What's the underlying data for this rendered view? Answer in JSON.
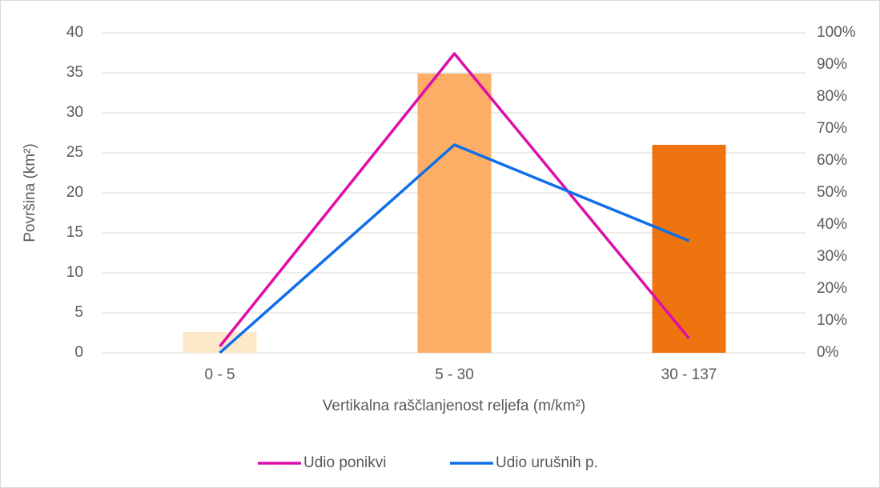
{
  "chart_data": {
    "type": "bar",
    "axis_label_y": "Površina (km²)",
    "axis_label_x": "Vertikalna raščlanjenost reljefa (m/km²)",
    "categories": [
      "0 - 5",
      "5 - 30",
      "30 - 137"
    ],
    "values": [
      2.6,
      34.9,
      26.0
    ],
    "colors": [
      "#fde8c8",
      "#fcae66",
      "#ee7410"
    ],
    "series": [
      {
        "name": "Udio ponikvi",
        "color": "#dd0fa8",
        "values": [
          2,
          93.5,
          4.5
        ],
        "axis": "y2"
      },
      {
        "name": "Udio urušnih p.",
        "color": "#0f6fe8",
        "values": [
          0,
          65,
          35
        ],
        "axis": "y2"
      }
    ],
    "ylim": [
      0,
      40
    ],
    "yticks": [
      0,
      5,
      10,
      15,
      20,
      25,
      30,
      35,
      40
    ],
    "y2lim": [
      0,
      100
    ],
    "y2ticks": [
      {
        "value": 0,
        "label": "0%"
      },
      {
        "value": 10,
        "label": "10%"
      },
      {
        "value": 20,
        "label": "20%"
      },
      {
        "value": 30,
        "label": "30%"
      },
      {
        "value": 40,
        "label": "40%"
      },
      {
        "value": 50,
        "label": "50%"
      },
      {
        "value": 60,
        "label": "60%"
      },
      {
        "value": 70,
        "label": "70%"
      },
      {
        "value": 80,
        "label": "80%"
      },
      {
        "value": 90,
        "label": "90%"
      },
      {
        "value": 100,
        "label": "100%"
      }
    ],
    "grid": true,
    "legend": "bottom"
  }
}
